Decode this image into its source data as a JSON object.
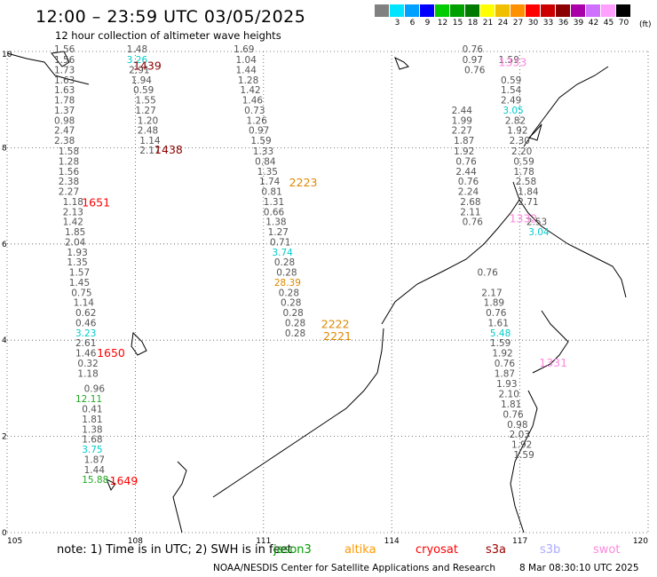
{
  "header": {
    "title": "12:00 – 23:59 UTC 03/05/2025",
    "subtitle": "12 hour collection of altimeter wave heights"
  },
  "color_scale": {
    "unit": "(ft)",
    "swatches": [
      {
        "label": "",
        "color": "#808080"
      },
      {
        "label": "3",
        "color": "#00e5ff"
      },
      {
        "label": "6",
        "color": "#00a0ff"
      },
      {
        "label": "9",
        "color": "#0000ff"
      },
      {
        "label": "12",
        "color": "#00cc00"
      },
      {
        "label": "15",
        "color": "#00a000"
      },
      {
        "label": "18",
        "color": "#007a00"
      },
      {
        "label": "21",
        "color": "#ffff00"
      },
      {
        "label": "24",
        "color": "#f0c000"
      },
      {
        "label": "27",
        "color": "#ff9000"
      },
      {
        "label": "30",
        "color": "#ff0000"
      },
      {
        "label": "33",
        "color": "#cc0000"
      },
      {
        "label": "36",
        "color": "#8b0000"
      },
      {
        "label": "39",
        "color": "#aa00aa"
      },
      {
        "label": "42",
        "color": "#d070ff"
      },
      {
        "label": "45",
        "color": "#ffa0ff"
      },
      {
        "label": "70",
        "color": "#000000"
      }
    ]
  },
  "axes": {
    "x_ticks": [
      {
        "label": "105",
        "value": 105
      },
      {
        "label": "108",
        "value": 108
      },
      {
        "label": "111",
        "value": 111
      },
      {
        "label": "114",
        "value": 114
      },
      {
        "label": "117",
        "value": 117
      },
      {
        "label": "120",
        "value": 120
      }
    ],
    "y_ticks": [
      {
        "label": "0",
        "value": 0
      },
      {
        "label": "2",
        "value": 2
      },
      {
        "label": "4",
        "value": 4
      },
      {
        "label": "6",
        "value": 6
      },
      {
        "label": "8",
        "value": 8
      },
      {
        "label": "10",
        "value": 10
      }
    ]
  },
  "observations": [
    {
      "text": "1.56",
      "color": "#555555",
      "lon": 106.1,
      "lat": 9.98
    },
    {
      "text": "1.56",
      "color": "#555555",
      "lon": 106.1,
      "lat": 9.76
    },
    {
      "text": "1.73",
      "color": "#555555",
      "lon": 106.1,
      "lat": 9.55
    },
    {
      "text": "1.63",
      "color": "#555555",
      "lon": 106.1,
      "lat": 9.34
    },
    {
      "text": "1.63",
      "color": "#555555",
      "lon": 106.1,
      "lat": 9.13
    },
    {
      "text": "1.78",
      "color": "#555555",
      "lon": 106.1,
      "lat": 8.92
    },
    {
      "text": "1.37",
      "color": "#555555",
      "lon": 106.1,
      "lat": 8.71
    },
    {
      "text": "0.98",
      "color": "#555555",
      "lon": 106.1,
      "lat": 8.5
    },
    {
      "text": "2.47",
      "color": "#555555",
      "lon": 106.1,
      "lat": 8.29
    },
    {
      "text": "2.38",
      "color": "#555555",
      "lon": 106.1,
      "lat": 8.08
    },
    {
      "text": "1.58",
      "color": "#555555",
      "lon": 106.2,
      "lat": 7.86
    },
    {
      "text": "1.28",
      "color": "#555555",
      "lon": 106.2,
      "lat": 7.65
    },
    {
      "text": "1.56",
      "color": "#555555",
      "lon": 106.2,
      "lat": 7.44
    },
    {
      "text": "2.38",
      "color": "#555555",
      "lon": 106.2,
      "lat": 7.23
    },
    {
      "text": "2.27",
      "color": "#555555",
      "lon": 106.2,
      "lat": 7.02
    },
    {
      "text": "1.18",
      "color": "#555555",
      "lon": 106.3,
      "lat": 6.81
    },
    {
      "text": "2.13",
      "color": "#555555",
      "lon": 106.3,
      "lat": 6.6
    },
    {
      "text": "1.42",
      "color": "#555555",
      "lon": 106.3,
      "lat": 6.39
    },
    {
      "text": "1.85",
      "color": "#555555",
      "lon": 106.35,
      "lat": 6.18
    },
    {
      "text": "2.04",
      "color": "#555555",
      "lon": 106.35,
      "lat": 5.97
    },
    {
      "text": "1.93",
      "color": "#555555",
      "lon": 106.4,
      "lat": 5.76
    },
    {
      "text": "1.35",
      "color": "#555555",
      "lon": 106.4,
      "lat": 5.55
    },
    {
      "text": "1.57",
      "color": "#555555",
      "lon": 106.45,
      "lat": 5.34
    },
    {
      "text": "1.45",
      "color": "#555555",
      "lon": 106.45,
      "lat": 5.13
    },
    {
      "text": "0.75",
      "color": "#555555",
      "lon": 106.5,
      "lat": 4.92
    },
    {
      "text": "1.14",
      "color": "#555555",
      "lon": 106.55,
      "lat": 4.71
    },
    {
      "text": "0.62",
      "color": "#555555",
      "lon": 106.6,
      "lat": 4.5
    },
    {
      "text": "0.46",
      "color": "#555555",
      "lon": 106.6,
      "lat": 4.29
    },
    {
      "text": "3.23",
      "color": "#00cccc",
      "lon": 106.6,
      "lat": 4.08
    },
    {
      "text": "2.61",
      "color": "#555555",
      "lon": 106.6,
      "lat": 3.87
    },
    {
      "text": "1.46",
      "color": "#555555",
      "lon": 106.6,
      "lat": 3.66
    },
    {
      "text": "0.32",
      "color": "#555555",
      "lon": 106.65,
      "lat": 3.45
    },
    {
      "text": "1.18",
      "color": "#555555",
      "lon": 106.65,
      "lat": 3.24
    },
    {
      "text": "0.96",
      "color": "#555555",
      "lon": 106.8,
      "lat": 2.92
    },
    {
      "text": "12.11",
      "color": "#22aa22",
      "lon": 106.6,
      "lat": 2.71
    },
    {
      "text": "0.41",
      "color": "#555555",
      "lon": 106.75,
      "lat": 2.5
    },
    {
      "text": "1.81",
      "color": "#555555",
      "lon": 106.75,
      "lat": 2.29
    },
    {
      "text": "1.38",
      "color": "#555555",
      "lon": 106.75,
      "lat": 2.08
    },
    {
      "text": "1.68",
      "color": "#555555",
      "lon": 106.75,
      "lat": 1.87
    },
    {
      "text": "3.75",
      "color": "#00cccc",
      "lon": 106.75,
      "lat": 1.66
    },
    {
      "text": "1.87",
      "color": "#555555",
      "lon": 106.8,
      "lat": 1.45
    },
    {
      "text": "1.44",
      "color": "#555555",
      "lon": 106.8,
      "lat": 1.24
    },
    {
      "text": "15.88",
      "color": "#22aa22",
      "lon": 106.75,
      "lat": 1.03
    },
    {
      "text": "1.48",
      "color": "#555555",
      "lon": 107.8,
      "lat": 9.98
    },
    {
      "text": "3.26",
      "color": "#00cccc",
      "lon": 107.8,
      "lat": 9.76
    },
    {
      "text": "2.91",
      "color": "#555555",
      "lon": 107.85,
      "lat": 9.55
    },
    {
      "text": "1.94",
      "color": "#555555",
      "lon": 107.9,
      "lat": 9.34
    },
    {
      "text": "0.59",
      "color": "#555555",
      "lon": 107.95,
      "lat": 9.13
    },
    {
      "text": "1.55",
      "color": "#555555",
      "lon": 108.0,
      "lat": 8.92
    },
    {
      "text": "1.27",
      "color": "#555555",
      "lon": 108.0,
      "lat": 8.71
    },
    {
      "text": "1.20",
      "color": "#555555",
      "lon": 108.05,
      "lat": 8.5
    },
    {
      "text": "2.48",
      "color": "#555555",
      "lon": 108.05,
      "lat": 8.29
    },
    {
      "text": "1.14",
      "color": "#555555",
      "lon": 108.1,
      "lat": 8.08
    },
    {
      "text": "2.17",
      "color": "#555555",
      "lon": 108.1,
      "lat": 7.88
    },
    {
      "text": "1.69",
      "color": "#555555",
      "lon": 110.3,
      "lat": 9.98
    },
    {
      "text": "1.04",
      "color": "#555555",
      "lon": 110.35,
      "lat": 9.76
    },
    {
      "text": "1.44",
      "color": "#555555",
      "lon": 110.35,
      "lat": 9.55
    },
    {
      "text": "1.28",
      "color": "#555555",
      "lon": 110.4,
      "lat": 9.34
    },
    {
      "text": "1.42",
      "color": "#555555",
      "lon": 110.45,
      "lat": 9.13
    },
    {
      "text": "1.46",
      "color": "#555555",
      "lon": 110.5,
      "lat": 8.92
    },
    {
      "text": "0.73",
      "color": "#555555",
      "lon": 110.55,
      "lat": 8.71
    },
    {
      "text": "1.26",
      "color": "#555555",
      "lon": 110.6,
      "lat": 8.5
    },
    {
      "text": "0.97",
      "color": "#555555",
      "lon": 110.65,
      "lat": 8.29
    },
    {
      "text": "1.59",
      "color": "#555555",
      "lon": 110.7,
      "lat": 8.08
    },
    {
      "text": "1.33",
      "color": "#555555",
      "lon": 110.75,
      "lat": 7.86
    },
    {
      "text": "0.84",
      "color": "#555555",
      "lon": 110.8,
      "lat": 7.65
    },
    {
      "text": "1.35",
      "color": "#555555",
      "lon": 110.85,
      "lat": 7.44
    },
    {
      "text": "1.74",
      "color": "#555555",
      "lon": 110.9,
      "lat": 7.23
    },
    {
      "text": "0.81",
      "color": "#555555",
      "lon": 110.95,
      "lat": 7.02
    },
    {
      "text": "1.31",
      "color": "#555555",
      "lon": 111.0,
      "lat": 6.81
    },
    {
      "text": "0.66",
      "color": "#555555",
      "lon": 111.0,
      "lat": 6.6
    },
    {
      "text": "1.38",
      "color": "#555555",
      "lon": 111.05,
      "lat": 6.39
    },
    {
      "text": "1.27",
      "color": "#555555",
      "lon": 111.1,
      "lat": 6.18
    },
    {
      "text": "0.71",
      "color": "#555555",
      "lon": 111.15,
      "lat": 5.97
    },
    {
      "text": "3.74",
      "color": "#00cccc",
      "lon": 111.2,
      "lat": 5.76
    },
    {
      "text": "0.28",
      "color": "#555555",
      "lon": 111.25,
      "lat": 5.55
    },
    {
      "text": "0.28",
      "color": "#555555",
      "lon": 111.3,
      "lat": 5.34
    },
    {
      "text": "28.39",
      "color": "#dd8800",
      "lon": 111.25,
      "lat": 5.13
    },
    {
      "text": "0.28",
      "color": "#555555",
      "lon": 111.35,
      "lat": 4.92
    },
    {
      "text": "0.28",
      "color": "#555555",
      "lon": 111.4,
      "lat": 4.71
    },
    {
      "text": "0.28",
      "color": "#555555",
      "lon": 111.45,
      "lat": 4.5
    },
    {
      "text": "0.28",
      "color": "#555555",
      "lon": 111.5,
      "lat": 4.29
    },
    {
      "text": "0.28",
      "color": "#555555",
      "lon": 111.5,
      "lat": 4.08
    },
    {
      "text": "0.76",
      "color": "#555555",
      "lon": 115.65,
      "lat": 9.98
    },
    {
      "text": "0.97",
      "color": "#555555",
      "lon": 115.65,
      "lat": 9.76
    },
    {
      "text": "0.76",
      "color": "#555555",
      "lon": 115.7,
      "lat": 9.55
    },
    {
      "text": "2.44",
      "color": "#555555",
      "lon": 115.4,
      "lat": 8.71
    },
    {
      "text": "1.99",
      "color": "#555555",
      "lon": 115.4,
      "lat": 8.5
    },
    {
      "text": "2.27",
      "color": "#555555",
      "lon": 115.4,
      "lat": 8.29
    },
    {
      "text": "1.87",
      "color": "#555555",
      "lon": 115.45,
      "lat": 8.08
    },
    {
      "text": "1.92",
      "color": "#555555",
      "lon": 115.45,
      "lat": 7.86
    },
    {
      "text": "0.76",
      "color": "#555555",
      "lon": 115.5,
      "lat": 7.65
    },
    {
      "text": "2.44",
      "color": "#555555",
      "lon": 115.5,
      "lat": 7.44
    },
    {
      "text": "0.76",
      "color": "#555555",
      "lon": 115.55,
      "lat": 7.23
    },
    {
      "text": "2.24",
      "color": "#555555",
      "lon": 115.55,
      "lat": 7.02
    },
    {
      "text": "2.68",
      "color": "#555555",
      "lon": 115.6,
      "lat": 6.81
    },
    {
      "text": "2.11",
      "color": "#555555",
      "lon": 115.6,
      "lat": 6.6
    },
    {
      "text": "0.76",
      "color": "#555555",
      "lon": 115.65,
      "lat": 6.39
    },
    {
      "text": "0.76",
      "color": "#555555",
      "lon": 116.0,
      "lat": 5.34
    },
    {
      "text": "2.17",
      "color": "#555555",
      "lon": 116.1,
      "lat": 4.92
    },
    {
      "text": "1.89",
      "color": "#555555",
      "lon": 116.15,
      "lat": 4.71
    },
    {
      "text": "0.76",
      "color": "#555555",
      "lon": 116.2,
      "lat": 4.5
    },
    {
      "text": "1.61",
      "color": "#555555",
      "lon": 116.25,
      "lat": 4.29
    },
    {
      "text": "5.48",
      "color": "#00cccc",
      "lon": 116.3,
      "lat": 4.08
    },
    {
      "text": "1.59",
      "color": "#555555",
      "lon": 116.3,
      "lat": 3.87
    },
    {
      "text": "1.92",
      "color": "#555555",
      "lon": 116.35,
      "lat": 3.66
    },
    {
      "text": "0.76",
      "color": "#555555",
      "lon": 116.4,
      "lat": 3.45
    },
    {
      "text": "1.87",
      "color": "#555555",
      "lon": 116.4,
      "lat": 3.24
    },
    {
      "text": "1.93",
      "color": "#555555",
      "lon": 116.45,
      "lat": 3.03
    },
    {
      "text": "2.10",
      "color": "#555555",
      "lon": 116.5,
      "lat": 2.81
    },
    {
      "text": "1.81",
      "color": "#555555",
      "lon": 116.55,
      "lat": 2.6
    },
    {
      "text": "0.76",
      "color": "#555555",
      "lon": 116.6,
      "lat": 2.39
    },
    {
      "text": "0.98",
      "color": "#555555",
      "lon": 116.7,
      "lat": 2.18
    },
    {
      "text": "2.03",
      "color": "#555555",
      "lon": 116.75,
      "lat": 1.97
    },
    {
      "text": "1.92",
      "color": "#555555",
      "lon": 116.8,
      "lat": 1.76
    },
    {
      "text": "1.59",
      "color": "#555555",
      "lon": 116.85,
      "lat": 1.55
    },
    {
      "text": "1.59",
      "color": "#555555",
      "lon": 116.5,
      "lat": 9.76
    },
    {
      "text": "0.59",
      "color": "#555555",
      "lon": 116.55,
      "lat": 9.34
    },
    {
      "text": "1.54",
      "color": "#555555",
      "lon": 116.55,
      "lat": 9.13
    },
    {
      "text": "2.49",
      "color": "#555555",
      "lon": 116.55,
      "lat": 8.92
    },
    {
      "text": "3.05",
      "color": "#00cccc",
      "lon": 116.6,
      "lat": 8.71
    },
    {
      "text": "2.82",
      "color": "#555555",
      "lon": 116.65,
      "lat": 8.5
    },
    {
      "text": "1.92",
      "color": "#555555",
      "lon": 116.7,
      "lat": 8.29
    },
    {
      "text": "2.30",
      "color": "#555555",
      "lon": 116.75,
      "lat": 8.08
    },
    {
      "text": "2.20",
      "color": "#555555",
      "lon": 116.8,
      "lat": 7.86
    },
    {
      "text": "0.59",
      "color": "#555555",
      "lon": 116.85,
      "lat": 7.65
    },
    {
      "text": "1.78",
      "color": "#555555",
      "lon": 116.85,
      "lat": 7.44
    },
    {
      "text": "2.58",
      "color": "#555555",
      "lon": 116.9,
      "lat": 7.23
    },
    {
      "text": "1.84",
      "color": "#555555",
      "lon": 116.95,
      "lat": 7.02
    },
    {
      "text": "2.71",
      "color": "#555555",
      "lon": 116.95,
      "lat": 6.81
    },
    {
      "text": "2.53",
      "color": "#555555",
      "lon": 117.15,
      "lat": 6.39
    },
    {
      "text": "3.04",
      "color": "#00cccc",
      "lon": 117.2,
      "lat": 6.18
    }
  ],
  "track_labels": [
    {
      "text": "1439",
      "color": "#8b0000",
      "lon": 107.95,
      "lat": 9.62
    },
    {
      "text": "1438",
      "color": "#8b0000",
      "lon": 108.45,
      "lat": 7.88
    },
    {
      "text": "1651",
      "color": "#ff0000",
      "lon": 106.75,
      "lat": 6.78
    },
    {
      "text": "2223",
      "color": "#dd8800",
      "lon": 111.6,
      "lat": 7.2
    },
    {
      "text": "1650",
      "color": "#ff0000",
      "lon": 107.1,
      "lat": 3.65
    },
    {
      "text": "2222",
      "color": "#dd8800",
      "lon": 112.35,
      "lat": 4.25
    },
    {
      "text": "2221",
      "color": "#dd8800",
      "lon": 112.4,
      "lat": 4.0
    },
    {
      "text": "1649",
      "color": "#ff0000",
      "lon": 107.4,
      "lat": 1.0
    },
    {
      "text": "1333",
      "color": "#ff88dd",
      "lon": 116.5,
      "lat": 9.7
    },
    {
      "text": "1332",
      "color": "#ff88dd",
      "lon": 116.75,
      "lat": 6.45
    },
    {
      "text": "1331",
      "color": "#ff88dd",
      "lon": 117.45,
      "lat": 3.45
    }
  ],
  "note": "note: 1) Time is in UTC; 2) SWH is in feet",
  "legend": [
    {
      "label": "jason3",
      "color": "#009900"
    },
    {
      "label": "altika",
      "color": "#ff9900"
    },
    {
      "label": "cryosat",
      "color": "#ff0000"
    },
    {
      "label": "s3a",
      "color": "#990000"
    },
    {
      "label": "s3b",
      "color": "#aaaaff"
    },
    {
      "label": "swot",
      "color": "#ff88dd"
    }
  ],
  "footer": {
    "credit": "NOAA/NESDIS Center for Satellite Applications and Research",
    "timestamp": "8 Mar 08:30:10 UTC 2025"
  }
}
